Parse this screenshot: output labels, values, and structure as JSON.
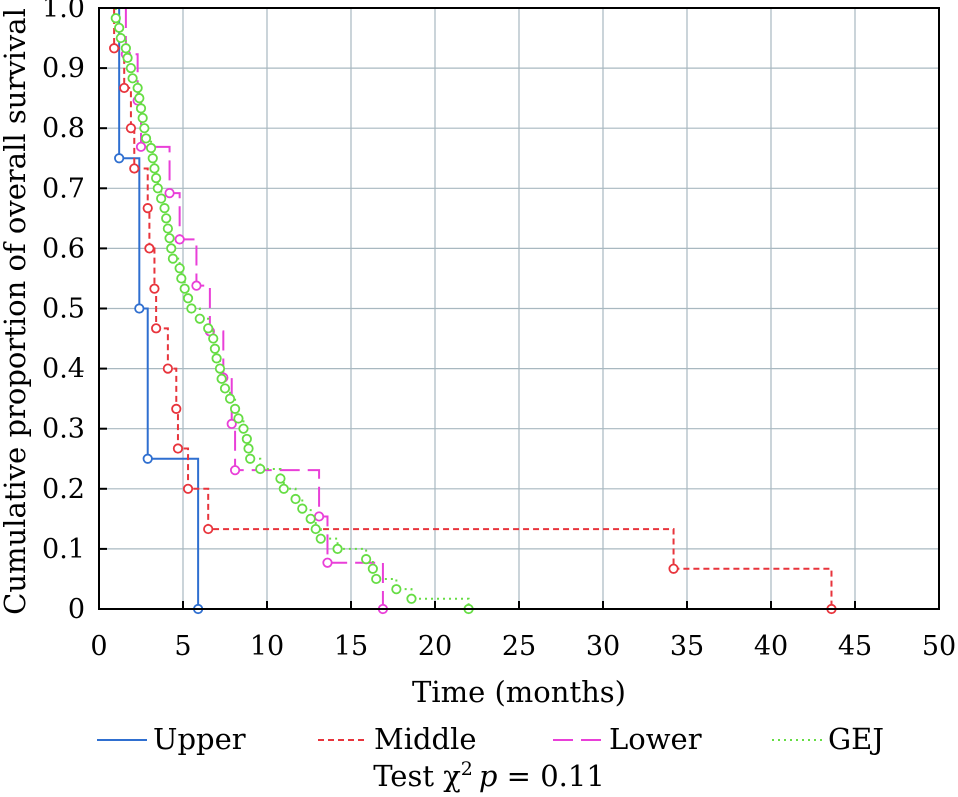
{
  "chart_data": {
    "type": "line",
    "subtype": "kaplan-meier step",
    "xlabel": "Time (months)",
    "ylabel": "Cumulative proportion of overall survival",
    "xlim": [
      0,
      50
    ],
    "ylim": [
      0,
      1.0
    ],
    "x_ticks": [
      "0",
      "5",
      "10",
      "15",
      "20",
      "25",
      "30",
      "35",
      "40",
      "45",
      "50"
    ],
    "y_ticks": [
      "0",
      "0.1",
      "0.2",
      "0.3",
      "0.4",
      "0.5",
      "0.6",
      "0.7",
      "0.8",
      "0.9",
      "1.0"
    ],
    "grid": true,
    "legend_position": "bottom",
    "annotation": {
      "prefix": "Test ",
      "chi": "χ",
      "sup": "2",
      "p": "p",
      "suffix": " = 0.11"
    },
    "series": [
      {
        "name": "Upper",
        "color": "#2f6fd0",
        "line_style": "solid",
        "points": [
          [
            1.2,
            0.75
          ],
          [
            2.4,
            0.5
          ],
          [
            2.9,
            0.25
          ],
          [
            5.9,
            0.0
          ]
        ]
      },
      {
        "name": "Middle",
        "color": "#e8343c",
        "line_style": "dashed",
        "points": [
          [
            0.9,
            0.933
          ],
          [
            1.5,
            0.867
          ],
          [
            1.9,
            0.8
          ],
          [
            2.1,
            0.733
          ],
          [
            2.9,
            0.667
          ],
          [
            3.0,
            0.6
          ],
          [
            3.3,
            0.533
          ],
          [
            3.4,
            0.467
          ],
          [
            4.1,
            0.4
          ],
          [
            4.6,
            0.333
          ],
          [
            4.7,
            0.267
          ],
          [
            5.3,
            0.2
          ],
          [
            6.5,
            0.133
          ],
          [
            34.2,
            0.067
          ],
          [
            43.6,
            0.0
          ]
        ]
      },
      {
        "name": "Lower",
        "color": "#e93fd8",
        "line_style": "longdash",
        "points": [
          [
            1.6,
            0.923
          ],
          [
            2.3,
            0.846
          ],
          [
            2.5,
            0.769
          ],
          [
            4.2,
            0.692
          ],
          [
            4.8,
            0.615
          ],
          [
            5.8,
            0.538
          ],
          [
            6.6,
            0.462
          ],
          [
            7.4,
            0.385
          ],
          [
            7.9,
            0.308
          ],
          [
            8.1,
            0.231
          ],
          [
            13.1,
            0.154
          ],
          [
            13.6,
            0.077
          ],
          [
            16.9,
            0.0
          ]
        ]
      },
      {
        "name": "GEJ",
        "color": "#66dd44",
        "line_style": "dotted",
        "points": [
          [
            1.0,
            0.983
          ],
          [
            1.2,
            0.967
          ],
          [
            1.3,
            0.95
          ],
          [
            1.6,
            0.933
          ],
          [
            1.7,
            0.917
          ],
          [
            1.9,
            0.9
          ],
          [
            2.0,
            0.883
          ],
          [
            2.3,
            0.867
          ],
          [
            2.4,
            0.85
          ],
          [
            2.5,
            0.833
          ],
          [
            2.6,
            0.817
          ],
          [
            2.7,
            0.8
          ],
          [
            2.8,
            0.783
          ],
          [
            3.1,
            0.767
          ],
          [
            3.2,
            0.75
          ],
          [
            3.3,
            0.733
          ],
          [
            3.4,
            0.717
          ],
          [
            3.5,
            0.7
          ],
          [
            3.7,
            0.683
          ],
          [
            3.9,
            0.667
          ],
          [
            4.0,
            0.65
          ],
          [
            4.1,
            0.633
          ],
          [
            4.2,
            0.617
          ],
          [
            4.3,
            0.6
          ],
          [
            4.4,
            0.583
          ],
          [
            4.8,
            0.567
          ],
          [
            4.9,
            0.55
          ],
          [
            5.1,
            0.533
          ],
          [
            5.3,
            0.517
          ],
          [
            5.5,
            0.5
          ],
          [
            6.0,
            0.483
          ],
          [
            6.5,
            0.467
          ],
          [
            6.8,
            0.45
          ],
          [
            6.9,
            0.433
          ],
          [
            7.0,
            0.417
          ],
          [
            7.2,
            0.4
          ],
          [
            7.3,
            0.383
          ],
          [
            7.5,
            0.367
          ],
          [
            7.8,
            0.35
          ],
          [
            8.1,
            0.333
          ],
          [
            8.3,
            0.317
          ],
          [
            8.6,
            0.3
          ],
          [
            8.8,
            0.283
          ],
          [
            8.9,
            0.267
          ],
          [
            9.0,
            0.25
          ],
          [
            9.6,
            0.233
          ],
          [
            10.8,
            0.217
          ],
          [
            11.0,
            0.2
          ],
          [
            11.7,
            0.183
          ],
          [
            12.1,
            0.167
          ],
          [
            12.6,
            0.15
          ],
          [
            12.9,
            0.133
          ],
          [
            13.2,
            0.117
          ],
          [
            14.2,
            0.1
          ],
          [
            15.9,
            0.083
          ],
          [
            16.3,
            0.067
          ],
          [
            16.5,
            0.05
          ],
          [
            17.7,
            0.033
          ],
          [
            18.6,
            0.017
          ],
          [
            22.0,
            0.0
          ]
        ]
      }
    ]
  }
}
